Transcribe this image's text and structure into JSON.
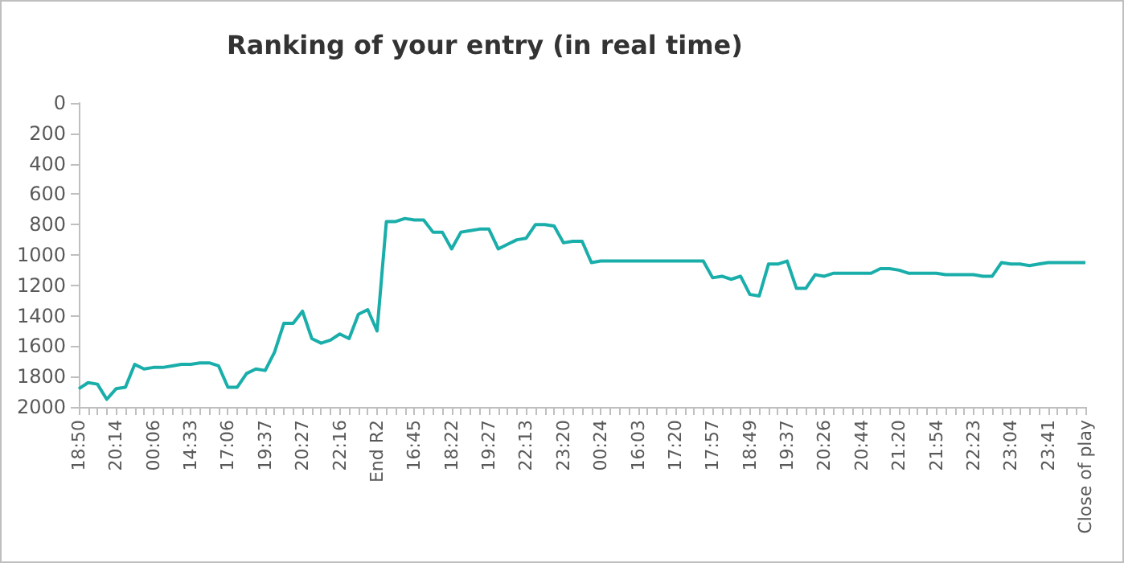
{
  "chart_data": {
    "type": "line",
    "title": "Ranking of your entry (in real time)",
    "categories": [
      "18:50",
      null,
      null,
      null,
      "20:14",
      null,
      null,
      null,
      "00:06",
      null,
      null,
      null,
      "14:33",
      null,
      null,
      null,
      "17:06",
      null,
      null,
      null,
      "19:37",
      null,
      null,
      null,
      "20:27",
      null,
      null,
      null,
      "22:16",
      null,
      null,
      null,
      "End R2",
      null,
      null,
      null,
      "16:45",
      null,
      null,
      null,
      "18:22",
      null,
      null,
      null,
      "19:27",
      null,
      null,
      null,
      "22:13",
      null,
      null,
      null,
      "23:20",
      null,
      null,
      null,
      "00:24",
      null,
      null,
      null,
      "16:03",
      null,
      null,
      null,
      "17:20",
      null,
      null,
      null,
      "17:57",
      null,
      null,
      null,
      "18:49",
      null,
      null,
      null,
      "19:37",
      null,
      null,
      null,
      "20:26",
      null,
      null,
      null,
      "20:44",
      null,
      null,
      null,
      "21:20",
      null,
      null,
      null,
      "21:54",
      null,
      null,
      null,
      "22:23",
      null,
      null,
      null,
      "23:04",
      null,
      null,
      null,
      "23:41",
      null,
      null,
      null,
      "Close of play"
    ],
    "series": [
      {
        "color": "#1aaeaa",
        "values": [
          1880,
          1840,
          1850,
          1950,
          1880,
          1870,
          1720,
          1750,
          1740,
          1740,
          1730,
          1720,
          1720,
          1710,
          1710,
          1730,
          1870,
          1870,
          1780,
          1750,
          1760,
          1640,
          1450,
          1450,
          1370,
          1550,
          1580,
          1560,
          1520,
          1550,
          1390,
          1360,
          1500,
          780,
          780,
          760,
          770,
          770,
          850,
          850,
          960,
          850,
          840,
          830,
          830,
          960,
          930,
          900,
          890,
          800,
          800,
          810,
          920,
          910,
          910,
          1050,
          1040,
          1040,
          1040,
          1040,
          1040,
          1040,
          1040,
          1040,
          1040,
          1040,
          1040,
          1040,
          1150,
          1140,
          1160,
          1140,
          1260,
          1270,
          1060,
          1060,
          1040,
          1220,
          1220,
          1130,
          1140,
          1120,
          1120,
          1120,
          1120,
          1120,
          1090,
          1090,
          1100,
          1120,
          1120,
          1120,
          1120,
          1130,
          1130,
          1130,
          1130,
          1140,
          1140,
          1050,
          1060,
          1060,
          1070,
          1060,
          1050,
          1050,
          1050,
          1050,
          1050
        ]
      }
    ],
    "ylim": [
      2000,
      0
    ],
    "yticks": [
      0,
      200,
      400,
      600,
      800,
      1000,
      1200,
      1400,
      1600,
      1800,
      2000
    ],
    "marker": "none",
    "grid": false
  }
}
